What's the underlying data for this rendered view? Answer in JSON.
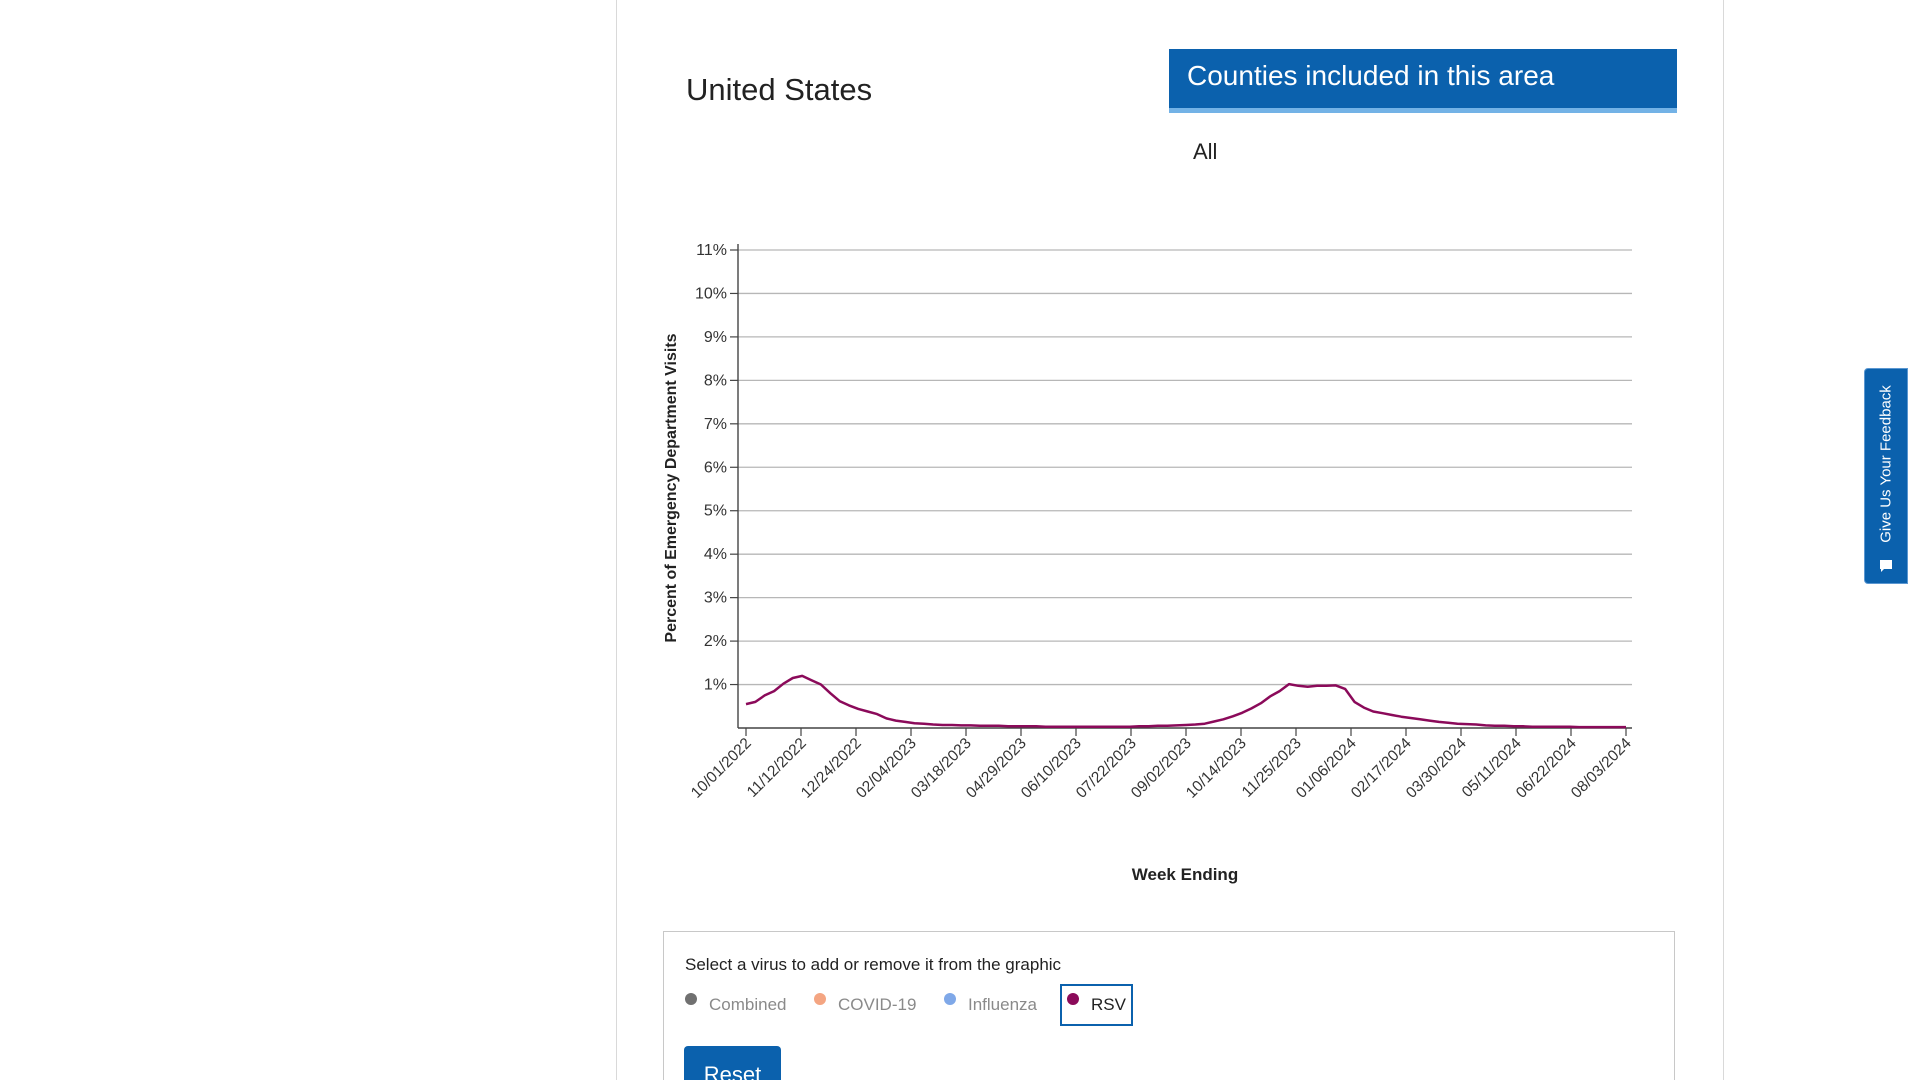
{
  "area": {
    "title": "United States"
  },
  "counties": {
    "heading": "Counties included in this area",
    "value": "All"
  },
  "legend": {
    "prompt": "Select a virus to add or remove it from the graphic",
    "items": [
      {
        "label": "Combined",
        "color": "#707070",
        "active": false
      },
      {
        "label": "COVID-19",
        "color": "#f4a582",
        "active": false
      },
      {
        "label": "Influenza",
        "color": "#7fa8e8",
        "active": false
      },
      {
        "label": "RSV",
        "color": "#8b0a5a",
        "active": true
      }
    ],
    "reset_label": "Reset"
  },
  "feedback": {
    "label": "Give Us Your Feedback",
    "icon": "comment-icon"
  },
  "chart_data": {
    "type": "line",
    "xlabel": "Week Ending",
    "ylabel": "Percent of Emergency Department Visits",
    "ylim": [
      0,
      11
    ],
    "y_ticks": [
      "1%",
      "2%",
      "3%",
      "4%",
      "5%",
      "6%",
      "7%",
      "8%",
      "9%",
      "10%",
      "11%"
    ],
    "x_ticks": [
      "10/01/2022",
      "11/12/2022",
      "12/24/2022",
      "02/04/2023",
      "03/18/2023",
      "04/29/2023",
      "06/10/2023",
      "07/22/2023",
      "09/02/2023",
      "10/14/2023",
      "11/25/2023",
      "01/06/2024",
      "02/17/2024",
      "03/30/2024",
      "05/11/2024",
      "06/22/2024",
      "08/03/2024"
    ],
    "grid": true,
    "series": [
      {
        "name": "RSV",
        "color": "#8b0a5a",
        "values": [
          0.55,
          0.6,
          0.75,
          0.85,
          1.02,
          1.15,
          1.2,
          1.1,
          1.0,
          0.8,
          0.62,
          0.52,
          0.44,
          0.38,
          0.32,
          0.22,
          0.17,
          0.14,
          0.11,
          0.1,
          0.08,
          0.07,
          0.07,
          0.06,
          0.06,
          0.05,
          0.05,
          0.05,
          0.04,
          0.04,
          0.04,
          0.04,
          0.03,
          0.03,
          0.03,
          0.03,
          0.03,
          0.03,
          0.03,
          0.03,
          0.03,
          0.03,
          0.04,
          0.04,
          0.05,
          0.05,
          0.06,
          0.07,
          0.08,
          0.1,
          0.15,
          0.2,
          0.27,
          0.35,
          0.45,
          0.57,
          0.73,
          0.85,
          1.01,
          0.97,
          0.95,
          0.97,
          0.97,
          0.98,
          0.9,
          0.6,
          0.47,
          0.38,
          0.34,
          0.3,
          0.26,
          0.23,
          0.2,
          0.17,
          0.14,
          0.12,
          0.1,
          0.09,
          0.08,
          0.06,
          0.05,
          0.05,
          0.04,
          0.04,
          0.03,
          0.03,
          0.03,
          0.03,
          0.03,
          0.02,
          0.02,
          0.02,
          0.02,
          0.02,
          0.02
        ]
      }
    ]
  }
}
